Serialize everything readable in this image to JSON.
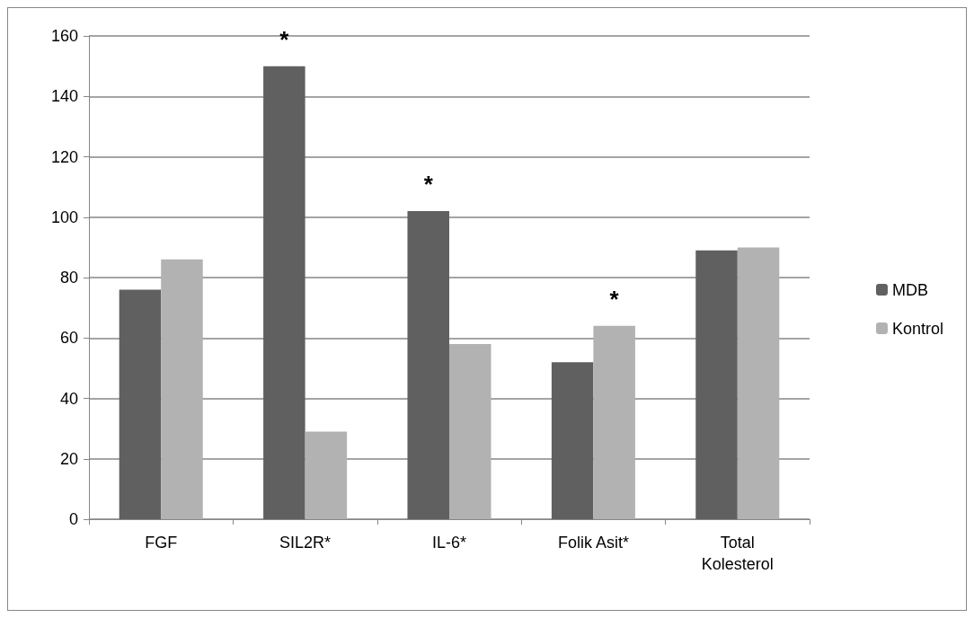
{
  "chart_data": {
    "type": "bar",
    "categories": [
      "FGF",
      "SIL2R*",
      "IL-6*",
      "Folik Asit*",
      "Total\nKolesterol"
    ],
    "series": [
      {
        "name": "MDB",
        "color": "#606060",
        "values": [
          76,
          150,
          102,
          52,
          89
        ]
      },
      {
        "name": "Kontrol",
        "color": "#b2b2b2",
        "values": [
          86,
          29,
          58,
          64,
          90
        ]
      }
    ],
    "ylim": [
      0,
      160
    ],
    "yticks": [
      0,
      20,
      40,
      60,
      80,
      100,
      120,
      140,
      160
    ],
    "grid": "y",
    "legend": "right",
    "annotations": [
      {
        "text": "*",
        "x": "SIL2R*",
        "y": 150
      },
      {
        "text": "*",
        "x": "IL-6*",
        "y": 102
      },
      {
        "text": "*",
        "x": "Folik Asit*",
        "y": 64
      }
    ]
  }
}
